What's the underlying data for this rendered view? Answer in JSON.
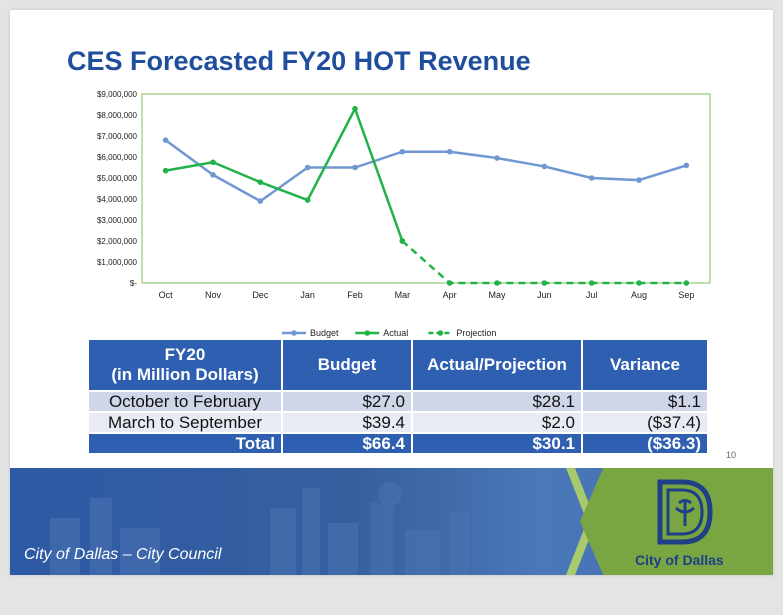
{
  "slide": {
    "title": "CES Forecasted FY20 HOT Revenue",
    "page_number": "10",
    "footer_caption": "City of Dallas – City Council",
    "logo_text": "City of Dallas"
  },
  "colors": {
    "title": "#1f4e9d",
    "budget": "#6f97d2",
    "actual": "#22b24a",
    "plot_border": "#a9d48e",
    "table_header": "#2e5fb0",
    "footer_blue": "#2d5aa5",
    "footer_green": "#79a642"
  },
  "chart_data": {
    "type": "line",
    "title": "",
    "categories": [
      "Oct",
      "Nov",
      "Dec",
      "Jan",
      "Feb",
      "Mar",
      "Apr",
      "May",
      "Jun",
      "Jul",
      "Aug",
      "Sep"
    ],
    "ylim": [
      0,
      9000000
    ],
    "y_ticks": [
      "$-",
      "$1,000,000",
      "$2,000,000",
      "$3,000,000",
      "$4,000,000",
      "$5,000,000",
      "$6,000,000",
      "$7,000,000",
      "$8,000,000",
      "$9,000,000"
    ],
    "y_tick_values": [
      0,
      1000000,
      2000000,
      3000000,
      4000000,
      5000000,
      6000000,
      7000000,
      8000000,
      9000000
    ],
    "grid": false,
    "legend_position": "bottom",
    "series": [
      {
        "name": "Budget",
        "color": "#6f97d2",
        "style": "solid",
        "values": [
          6800000,
          5150000,
          3900000,
          5500000,
          5500000,
          6250000,
          6250000,
          5950000,
          5550000,
          5000000,
          4900000,
          5600000
        ]
      },
      {
        "name": "Actual",
        "color": "#22b24a",
        "style": "solid",
        "values": [
          5350000,
          5750000,
          4800000,
          3950000,
          8300000,
          2000000,
          null,
          null,
          null,
          null,
          null,
          null
        ]
      },
      {
        "name": "Projection",
        "color": "#22b24a",
        "style": "dashed",
        "values": [
          null,
          null,
          null,
          null,
          null,
          2000000,
          0,
          0,
          0,
          0,
          0,
          0
        ]
      }
    ]
  },
  "table": {
    "header_line1": "FY20",
    "header_line2": "(in Million Dollars)",
    "columns": [
      "Budget",
      "Actual/Projection",
      "Variance"
    ],
    "rows": [
      {
        "label": "October to February",
        "budget": "$27.0",
        "actual": "$28.1",
        "variance": "$1.1"
      },
      {
        "label": "March to September",
        "budget": "$39.4",
        "actual": "$2.0",
        "variance": "($37.4)"
      },
      {
        "label": "Total",
        "budget": "$66.4",
        "actual": "$30.1",
        "variance": "($36.3)"
      }
    ]
  }
}
